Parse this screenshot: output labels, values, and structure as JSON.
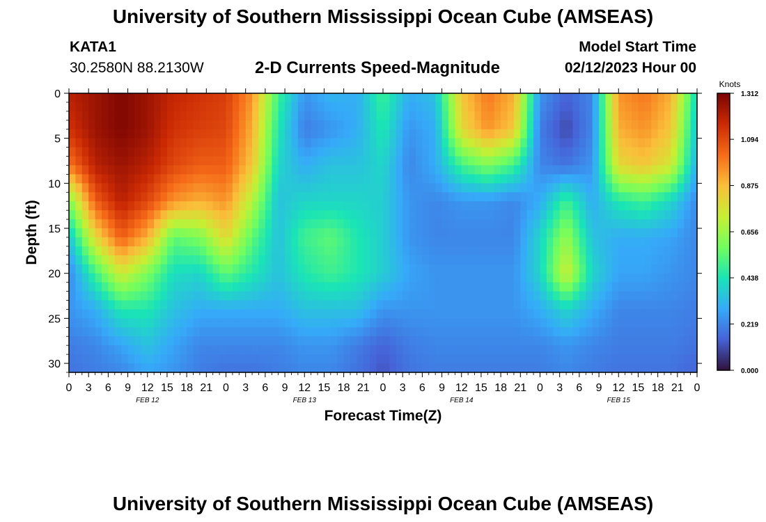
{
  "page": {
    "title_top": "University of Southern Mississippi Ocean Cube (AMSEAS)",
    "title_bottom": "University of Southern Mississippi Ocean Cube (AMSEAS)",
    "station_name": "KATA1",
    "station_coords": "30.2580N  88.2130W",
    "chart_title": "2-D Currents Speed-Magnitude",
    "model_label": "Model Start Time",
    "model_time": "02/12/2023 Hour 00"
  },
  "colors": {
    "stops": [
      "#30123b",
      "#4662d7",
      "#36aaf9",
      "#1ae4b6",
      "#72fe5e",
      "#c7ef34",
      "#fabe3a",
      "#f66b19",
      "#cb2a04",
      "#7a0403"
    ]
  },
  "chart_data": {
    "type": "heatmap",
    "title": "2-D Currents Speed-Magnitude",
    "xlabel": "Forecast Time(Z)",
    "ylabel": "Depth (ft)",
    "xlim": [
      0,
      96
    ],
    "ylim": [
      31,
      0
    ],
    "x_tick_labels": [
      "0",
      "3",
      "6",
      "9",
      "12",
      "15",
      "18",
      "21",
      "0",
      "3",
      "6",
      "9",
      "12",
      "15",
      "18",
      "21",
      "0",
      "3",
      "6",
      "9",
      "12",
      "15",
      "18",
      "21",
      "0",
      "3",
      "6",
      "9",
      "12",
      "15",
      "18",
      "21",
      "0"
    ],
    "x_tick_hours": [
      0,
      3,
      6,
      9,
      12,
      15,
      18,
      21,
      24,
      27,
      30,
      33,
      36,
      39,
      42,
      45,
      48,
      51,
      54,
      57,
      60,
      63,
      66,
      69,
      72,
      75,
      78,
      81,
      84,
      87,
      90,
      93,
      96
    ],
    "date_labels": [
      {
        "text": "FEB 12",
        "hour": 12
      },
      {
        "text": "FEB 13",
        "hour": 36
      },
      {
        "text": "FEB 14",
        "hour": 60
      },
      {
        "text": "FEB 15",
        "hour": 84
      }
    ],
    "y_ticks": [
      0,
      5,
      10,
      15,
      20,
      25,
      30
    ],
    "y_tick_labels": [
      "0",
      "5",
      "10",
      "15",
      "20",
      "25",
      "30"
    ],
    "colorbar": {
      "label": "Knots",
      "min": 0.0,
      "max": 1.312,
      "tick_values": [
        1.312,
        1.094,
        0.875,
        0.656,
        0.438,
        0.219,
        0.0
      ],
      "tick_labels": [
        "1.312",
        "1.094",
        "0.875",
        "0.656",
        "0.438",
        "0.219",
        "0.000"
      ]
    },
    "hours": [
      0,
      4,
      8,
      12,
      16,
      20,
      24,
      28,
      32,
      36,
      40,
      44,
      48,
      52,
      56,
      60,
      64,
      68,
      72,
      76,
      80,
      84,
      88,
      92,
      96
    ],
    "depths": [
      0,
      4,
      8,
      12,
      16,
      20,
      24,
      28,
      31
    ],
    "values": [
      [
        1.2,
        1.25,
        1.3,
        1.25,
        1.18,
        1.15,
        1.12,
        0.95,
        0.5,
        0.25,
        0.32,
        0.3,
        0.5,
        0.3,
        0.35,
        0.85,
        1.0,
        0.9,
        0.25,
        0.15,
        0.22,
        0.95,
        1.0,
        0.9,
        0.4
      ],
      [
        1.15,
        1.25,
        1.3,
        1.25,
        1.15,
        1.12,
        1.1,
        0.9,
        0.45,
        0.2,
        0.25,
        0.3,
        0.45,
        0.25,
        0.3,
        0.8,
        0.95,
        0.85,
        0.2,
        0.1,
        0.22,
        0.9,
        0.95,
        0.85,
        0.35
      ],
      [
        1.0,
        1.2,
        1.25,
        1.2,
        1.1,
        1.05,
        1.05,
        0.85,
        0.4,
        0.3,
        0.35,
        0.35,
        0.4,
        0.22,
        0.3,
        0.5,
        0.6,
        0.5,
        0.22,
        0.18,
        0.25,
        0.8,
        0.85,
        0.75,
        0.3
      ],
      [
        0.6,
        1.05,
        1.2,
        1.1,
        0.95,
        0.9,
        0.95,
        0.7,
        0.35,
        0.4,
        0.4,
        0.4,
        0.38,
        0.25,
        0.22,
        0.25,
        0.25,
        0.22,
        0.3,
        0.5,
        0.3,
        0.45,
        0.5,
        0.4,
        0.22
      ],
      [
        0.35,
        0.8,
        1.05,
        0.9,
        0.55,
        0.6,
        0.8,
        0.55,
        0.35,
        0.5,
        0.55,
        0.45,
        0.38,
        0.25,
        0.22,
        0.22,
        0.22,
        0.22,
        0.4,
        0.65,
        0.35,
        0.3,
        0.3,
        0.28,
        0.22
      ],
      [
        0.22,
        0.5,
        0.75,
        0.6,
        0.42,
        0.4,
        0.55,
        0.45,
        0.35,
        0.45,
        0.5,
        0.45,
        0.38,
        0.28,
        0.25,
        0.25,
        0.25,
        0.25,
        0.4,
        0.75,
        0.4,
        0.28,
        0.28,
        0.25,
        0.22
      ],
      [
        0.25,
        0.3,
        0.45,
        0.45,
        0.35,
        0.3,
        0.3,
        0.3,
        0.3,
        0.35,
        0.35,
        0.35,
        0.25,
        0.25,
        0.25,
        0.25,
        0.25,
        0.25,
        0.3,
        0.4,
        0.3,
        0.22,
        0.22,
        0.22,
        0.2
      ],
      [
        0.2,
        0.22,
        0.28,
        0.35,
        0.28,
        0.22,
        0.22,
        0.22,
        0.22,
        0.25,
        0.25,
        0.2,
        0.15,
        0.2,
        0.22,
        0.22,
        0.22,
        0.22,
        0.22,
        0.25,
        0.22,
        0.2,
        0.2,
        0.2,
        0.18
      ],
      [
        0.18,
        0.2,
        0.22,
        0.28,
        0.25,
        0.2,
        0.18,
        0.18,
        0.2,
        0.22,
        0.22,
        0.18,
        0.12,
        0.18,
        0.2,
        0.2,
        0.2,
        0.2,
        0.2,
        0.22,
        0.2,
        0.18,
        0.18,
        0.18,
        0.15
      ]
    ]
  }
}
